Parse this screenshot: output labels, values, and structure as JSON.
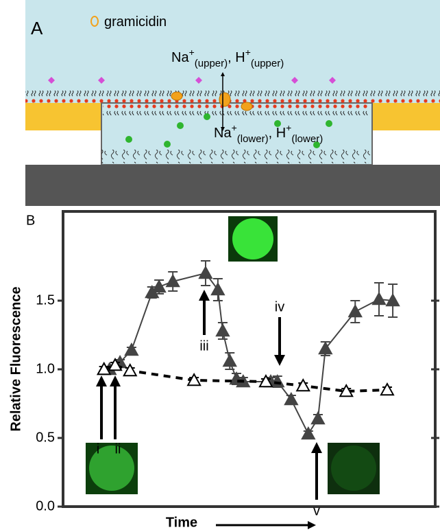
{
  "panel_a": {
    "label": "A",
    "legend": "gramicidin",
    "ions_upper": [
      "Na",
      "+",
      "(upper)",
      ", H",
      "+",
      "(upper)"
    ],
    "ions_lower": [
      "Na",
      "+",
      "(lower)",
      ", H",
      "+",
      "(lower)"
    ]
  },
  "chart_data": {
    "type": "line",
    "label": "B",
    "y_label": "Relative Fluorescence",
    "x_label": "Time",
    "xlim": [
      0,
      100
    ],
    "ylim": [
      0,
      2.15
    ],
    "yticks": [
      {
        "value": 0,
        "label": "0.0"
      },
      0.5,
      {
        "value": 1,
        "label": "1.0"
      },
      1.5
    ],
    "series": [
      {
        "color": "#444444",
        "filled": true,
        "x": [
          11.0,
          12.5,
          15.3,
          18.4,
          23.9,
          25.8,
          29.5,
          38.3,
          41.6,
          42.9,
          44.8,
          46.6,
          48.4,
          55.8,
          57.6,
          61.3,
          65.9,
          68.5,
          70.5,
          78.5,
          84.9,
          88.6
        ],
        "values": [
          1.0,
          1.0,
          1.05,
          1.14,
          1.56,
          1.6,
          1.64,
          1.7,
          1.58,
          1.28,
          1.06,
          0.93,
          0.91,
          0.91,
          0.91,
          0.78,
          0.53,
          0.64,
          1.15,
          1.42,
          1.51,
          1.5
        ],
        "errors": [
          0.02,
          0.02,
          0.02,
          0.02,
          0.04,
          0.05,
          0.07,
          0.09,
          0.08,
          0.06,
          0.06,
          0.04,
          0.03,
          0.03,
          0.04,
          0.03,
          0.02,
          0.03,
          0.05,
          0.08,
          0.12,
          0.12
        ]
      },
      {
        "color": "#000000",
        "filled": false,
        "dashed": true,
        "x": [
          11.0,
          14.0,
          18.0,
          35.2,
          54.5,
          64.5,
          76.1,
          87.1
        ],
        "values": [
          1.0,
          1.03,
          0.99,
          0.92,
          0.91,
          0.88,
          0.84,
          0.85
        ],
        "errors": [
          0.02,
          0.02,
          0.02,
          0.02,
          0.02,
          0.02,
          0.02,
          0.02
        ]
      }
    ],
    "annotations": [
      "i",
      "ii",
      "iii",
      "iv",
      "v"
    ]
  }
}
